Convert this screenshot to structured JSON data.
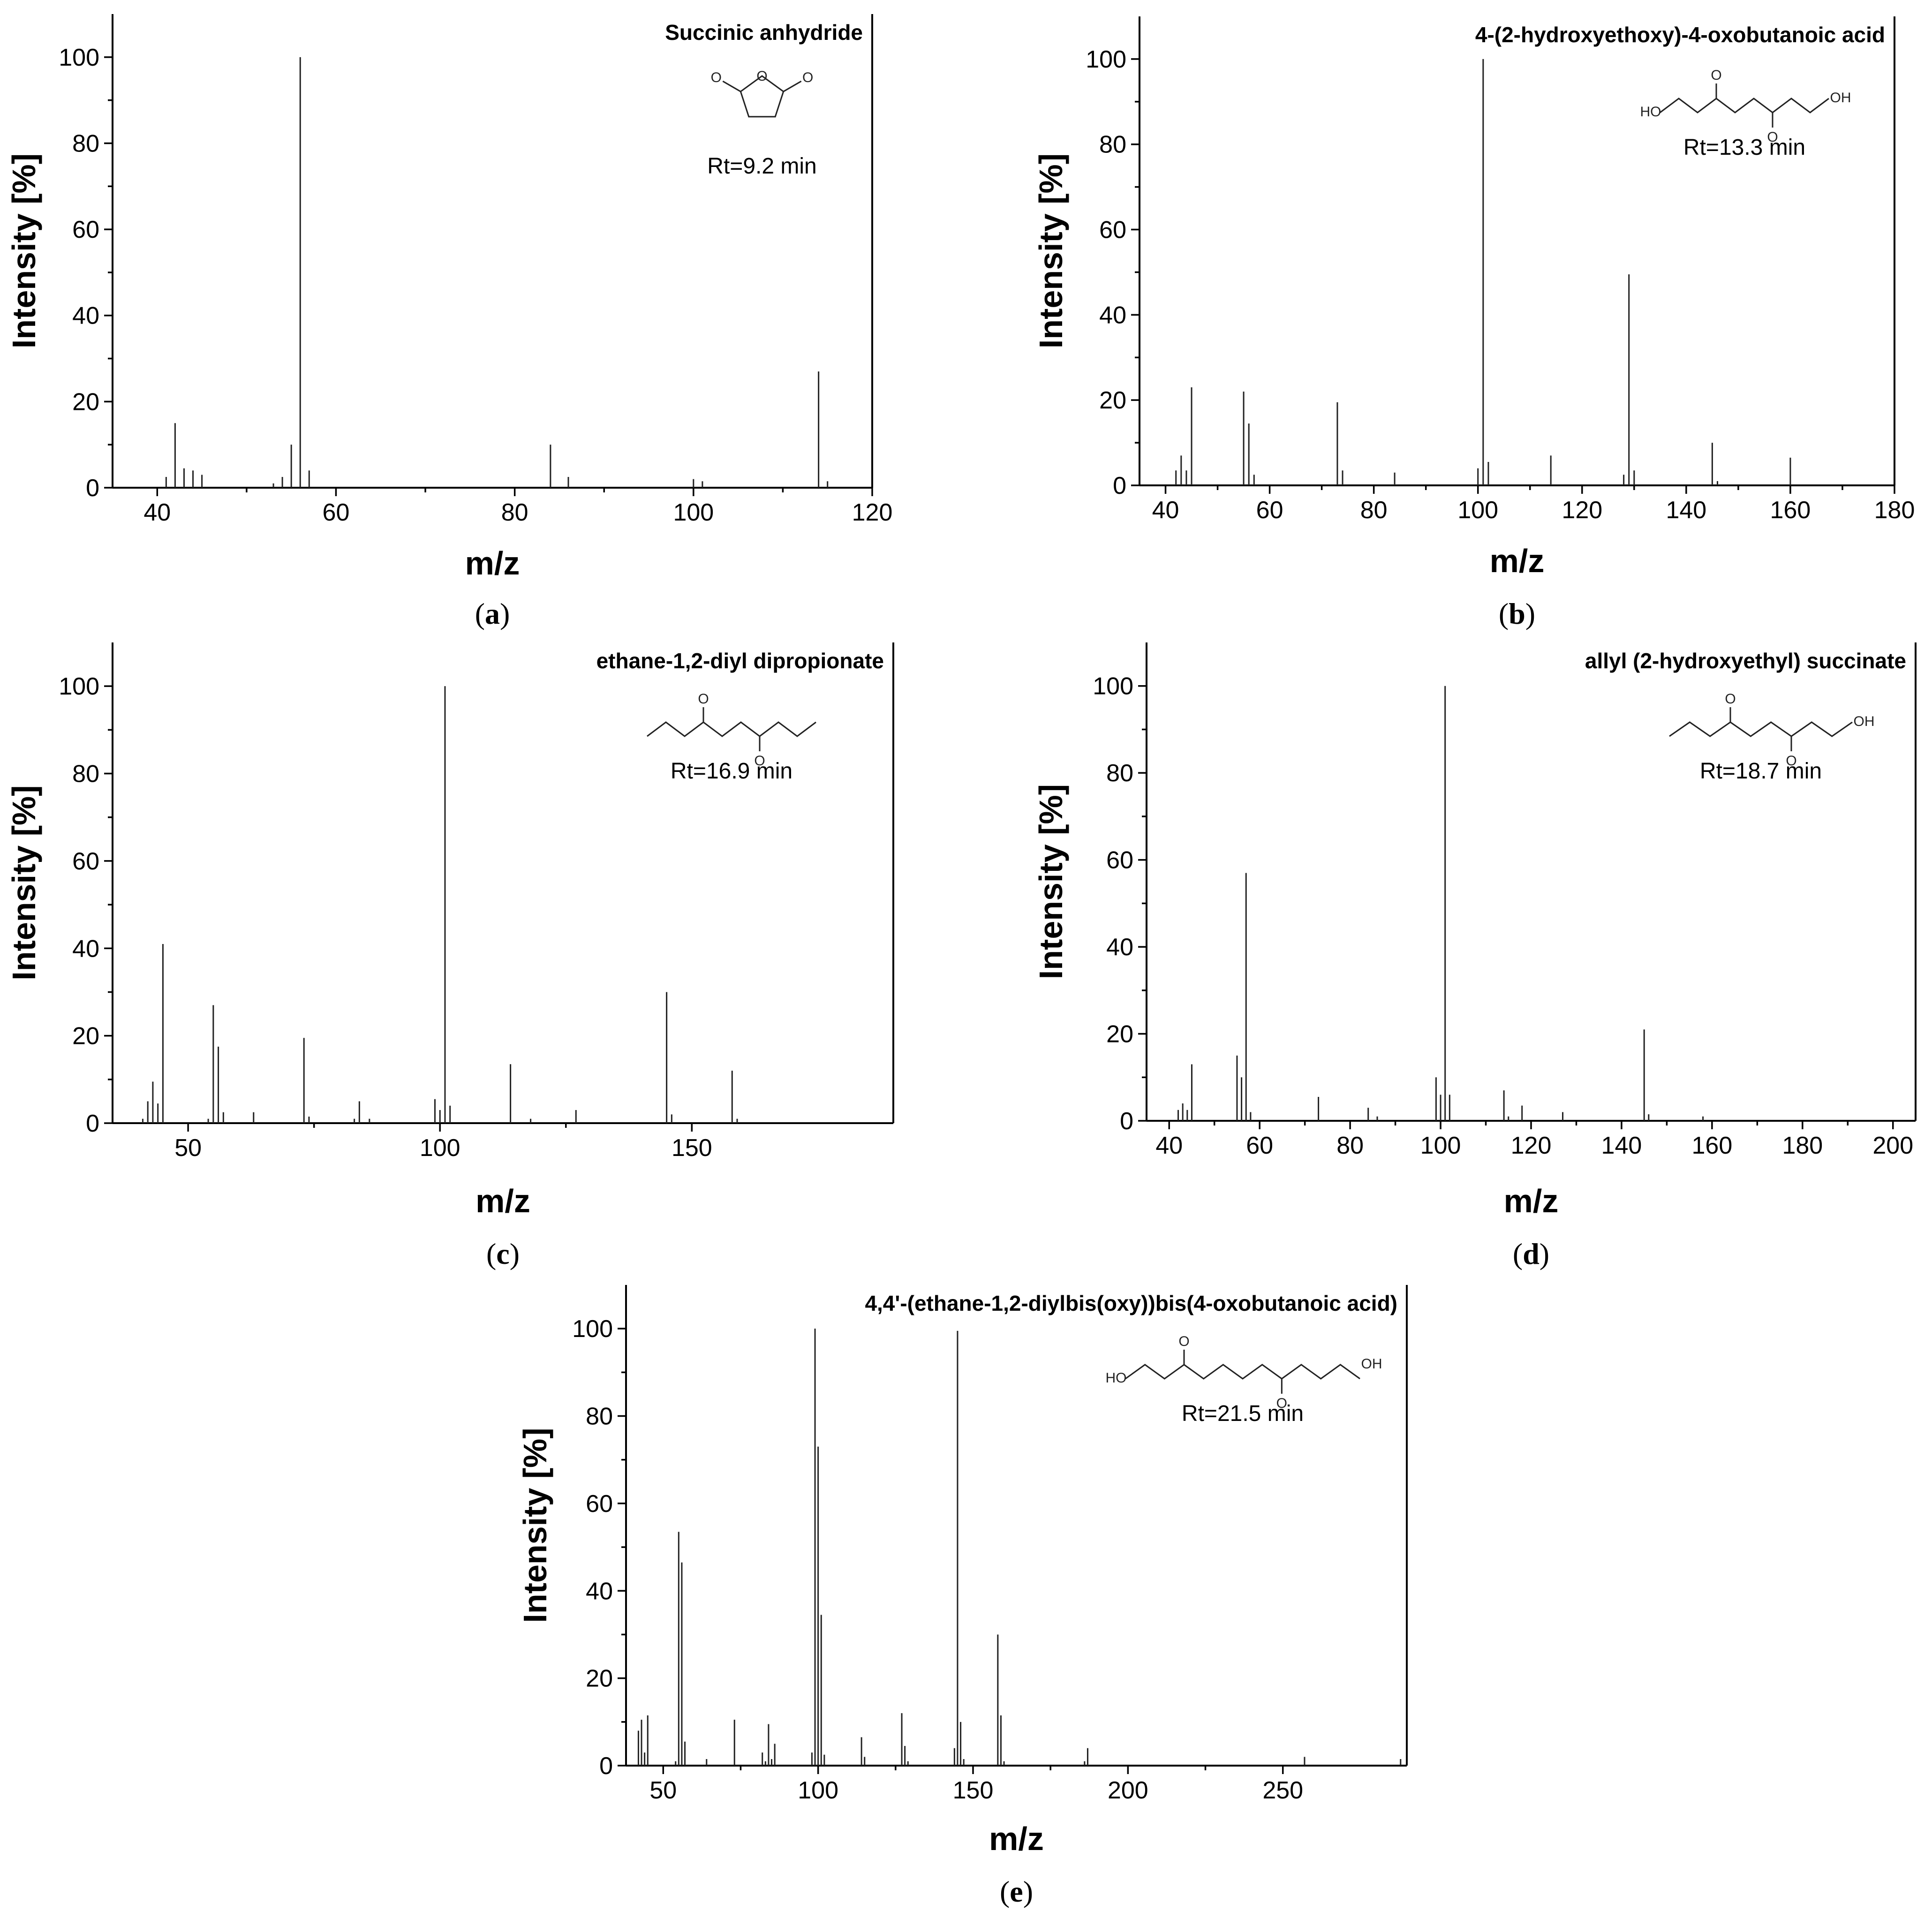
{
  "chart_data": [
    {
      "type": "bar",
      "panel": "(a)",
      "title": "Succinic anhydride",
      "annotation": "Rt=9.2 min",
      "xlabel": "m/z",
      "ylabel": "Intensity [%]",
      "xlim": [
        35,
        120
      ],
      "ylim": [
        0,
        110
      ],
      "xticks": [
        40,
        60,
        80,
        100,
        120
      ],
      "yticks": [
        0,
        20,
        40,
        60,
        80,
        100
      ],
      "molecule": "succinic-anhydride-structure",
      "peaks": [
        [
          41,
          2.5
        ],
        [
          42,
          15
        ],
        [
          43,
          4.5
        ],
        [
          44,
          4
        ],
        [
          45,
          3
        ],
        [
          53,
          1
        ],
        [
          54,
          2.5
        ],
        [
          55,
          10
        ],
        [
          56,
          100
        ],
        [
          57,
          4
        ],
        [
          84,
          10
        ],
        [
          86,
          2.5
        ],
        [
          100,
          2
        ],
        [
          101,
          1.5
        ],
        [
          114,
          27
        ],
        [
          115,
          1.5
        ]
      ]
    },
    {
      "type": "bar",
      "panel": "(b)",
      "title": "4-(2-hydroxyethoxy)-4-oxobutanoic acid",
      "annotation": "Rt=13.3 min",
      "xlabel": "m/z",
      "ylabel": "Intensity [%]",
      "xlim": [
        35,
        180
      ],
      "ylim": [
        0,
        110
      ],
      "xticks": [
        40,
        60,
        80,
        100,
        120,
        140,
        160,
        180
      ],
      "yticks": [
        0,
        20,
        40,
        60,
        80,
        100
      ],
      "molecule": "hydroxyethoxy-oxobutanoic-acid-structure",
      "molecule_labels": {
        "ho": "HO",
        "oh": "OH",
        "o": "O"
      },
      "peaks": [
        [
          42,
          3.5
        ],
        [
          43,
          7
        ],
        [
          44,
          3.5
        ],
        [
          45,
          23
        ],
        [
          55,
          22
        ],
        [
          56,
          14.5
        ],
        [
          57,
          2.5
        ],
        [
          73,
          19.5
        ],
        [
          74,
          3.5
        ],
        [
          84,
          3
        ],
        [
          100,
          4
        ],
        [
          101,
          100
        ],
        [
          102,
          5.5
        ],
        [
          114,
          7
        ],
        [
          128,
          2.5
        ],
        [
          129,
          49.5
        ],
        [
          130,
          3.5
        ],
        [
          145,
          10
        ],
        [
          146,
          1
        ],
        [
          160,
          6.5
        ]
      ]
    },
    {
      "type": "bar",
      "panel": "(c)",
      "title": "ethane-1,2-diyl dipropionate",
      "annotation": "Rt=16.9 min",
      "xlabel": "m/z",
      "ylabel": "Intensity [%]",
      "xlim": [
        35,
        190
      ],
      "ylim": [
        0,
        110
      ],
      "xticks": [
        50,
        100,
        150
      ],
      "yticks": [
        0,
        20,
        40,
        60,
        80,
        100
      ],
      "molecule": "ethane-diyl-dipropionate-structure",
      "molecule_labels": {
        "o": "O"
      },
      "peaks": [
        [
          41,
          1
        ],
        [
          42,
          5
        ],
        [
          43,
          9.5
        ],
        [
          44,
          4.5
        ],
        [
          45,
          41
        ],
        [
          54,
          1
        ],
        [
          55,
          27
        ],
        [
          56,
          17.5
        ],
        [
          57,
          2.5
        ],
        [
          63,
          2.5
        ],
        [
          73,
          19.5
        ],
        [
          74,
          1.5
        ],
        [
          83,
          1
        ],
        [
          84,
          5
        ],
        [
          86,
          1
        ],
        [
          99,
          5.5
        ],
        [
          100,
          3
        ],
        [
          101,
          100
        ],
        [
          102,
          4
        ],
        [
          114,
          13.5
        ],
        [
          118,
          1
        ],
        [
          127,
          3
        ],
        [
          145,
          30
        ],
        [
          146,
          2
        ],
        [
          158,
          12
        ],
        [
          159,
          1
        ]
      ]
    },
    {
      "type": "bar",
      "panel": "(d)",
      "title": "allyl (2-hydroxyethyl) succinate",
      "annotation": "Rt=18.7 min",
      "xlabel": "m/z",
      "ylabel": "Intensity [%]",
      "xlim": [
        35,
        205
      ],
      "ylim": [
        0,
        110
      ],
      "xticks": [
        40,
        60,
        80,
        100,
        120,
        140,
        160,
        180,
        200
      ],
      "yticks": [
        0,
        20,
        40,
        60,
        80,
        100
      ],
      "molecule": "allyl-hydroxyethyl-succinate-structure",
      "molecule_labels": {
        "oh": "OH",
        "o": "O"
      },
      "peaks": [
        [
          42,
          2.5
        ],
        [
          43,
          4
        ],
        [
          44,
          2.5
        ],
        [
          45,
          13
        ],
        [
          55,
          15
        ],
        [
          56,
          10
        ],
        [
          57,
          57
        ],
        [
          58,
          2
        ],
        [
          73,
          5.5
        ],
        [
          84,
          3
        ],
        [
          86,
          1
        ],
        [
          99,
          10
        ],
        [
          100,
          6
        ],
        [
          101,
          100
        ],
        [
          102,
          6
        ],
        [
          114,
          7
        ],
        [
          115,
          1
        ],
        [
          118,
          3.5
        ],
        [
          127,
          2
        ],
        [
          145,
          21
        ],
        [
          146,
          1.5
        ],
        [
          158,
          1
        ]
      ]
    },
    {
      "type": "bar",
      "panel": "(e)",
      "title": "4,4'-(ethane-1,2-diylbis(oxy))bis(4-oxobutanoic acid)",
      "annotation": "Rt=21.5 min",
      "xlabel": "m/z",
      "ylabel": "Intensity [%]",
      "xlim": [
        38,
        290
      ],
      "ylim": [
        0,
        110
      ],
      "xticks": [
        50,
        100,
        150,
        200,
        250
      ],
      "yticks": [
        0,
        20,
        40,
        60,
        80,
        100
      ],
      "molecule": "ethanediylbis-oxobutanoic-acid-structure",
      "molecule_labels": {
        "ho": "HO",
        "oh": "OH",
        "o": "O"
      },
      "peaks": [
        [
          42,
          8
        ],
        [
          43,
          10.5
        ],
        [
          44,
          3
        ],
        [
          45,
          11.5
        ],
        [
          54,
          1
        ],
        [
          55,
          53.5
        ],
        [
          56,
          46.5
        ],
        [
          57,
          5.5
        ],
        [
          64,
          1.5
        ],
        [
          73,
          10.5
        ],
        [
          82,
          3
        ],
        [
          83,
          1
        ],
        [
          84,
          9.5
        ],
        [
          85,
          1.5
        ],
        [
          86,
          5
        ],
        [
          98,
          3
        ],
        [
          99,
          100
        ],
        [
          100,
          73
        ],
        [
          101,
          34.5
        ],
        [
          102,
          2.5
        ],
        [
          114,
          6.5
        ],
        [
          115,
          2
        ],
        [
          127,
          12
        ],
        [
          128,
          4.5
        ],
        [
          129,
          1
        ],
        [
          144,
          4
        ],
        [
          145,
          99.5
        ],
        [
          146,
          10
        ],
        [
          147,
          1.5
        ],
        [
          158,
          30
        ],
        [
          159,
          11.5
        ],
        [
          160,
          1
        ],
        [
          186,
          1
        ],
        [
          187,
          4
        ],
        [
          257,
          2
        ],
        [
          288,
          1.5
        ]
      ]
    }
  ]
}
